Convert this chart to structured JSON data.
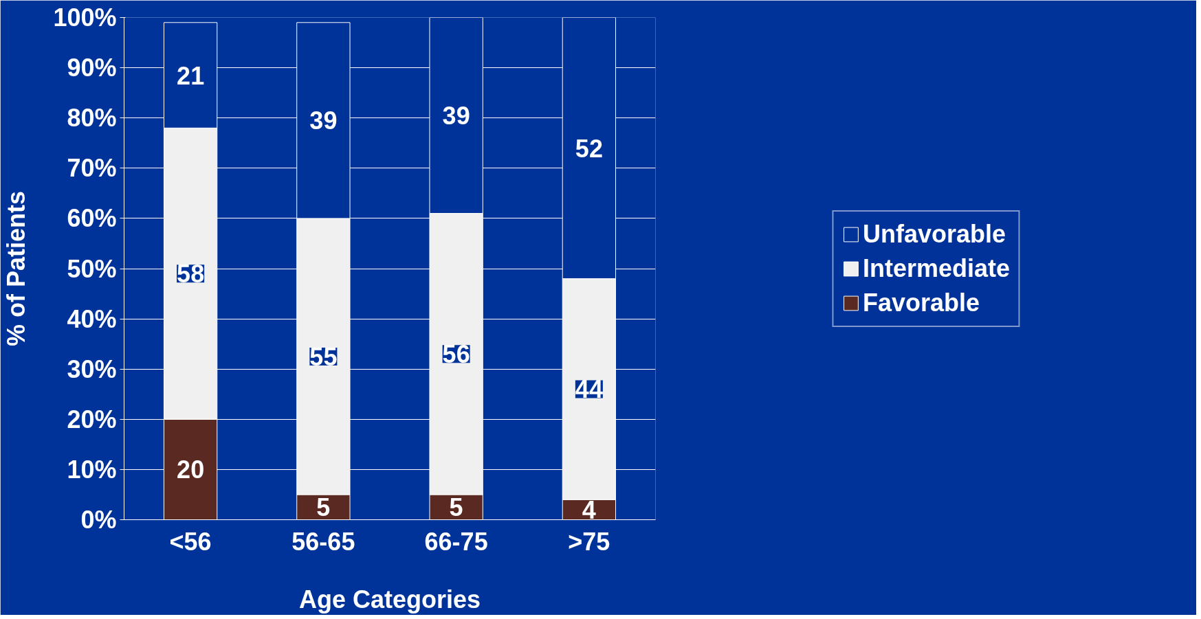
{
  "chart_data": {
    "type": "bar",
    "stacked": true,
    "xlabel": "Age Categories",
    "ylabel": "% of Patients",
    "categories": [
      "<56",
      "56-65",
      "66-75",
      ">75"
    ],
    "series": [
      {
        "name": "Favorable",
        "color": "#5a2a22",
        "values": [
          20,
          5,
          5,
          4
        ]
      },
      {
        "name": "Intermediate",
        "color": "#f0f0f0",
        "values": [
          58,
          55,
          56,
          44
        ]
      },
      {
        "name": "Unfavorable",
        "color": "#003399",
        "values": [
          21,
          39,
          39,
          52
        ]
      }
    ],
    "ylim": [
      0,
      100
    ],
    "yticks": [
      {
        "value": 0,
        "label": "0%"
      },
      {
        "value": 10,
        "label": "10%"
      },
      {
        "value": 20,
        "label": "20%"
      },
      {
        "value": 30,
        "label": "30%"
      },
      {
        "value": 40,
        "label": "40%"
      },
      {
        "value": 50,
        "label": "50%"
      },
      {
        "value": 60,
        "label": "60%"
      },
      {
        "value": 70,
        "label": "70%"
      },
      {
        "value": 80,
        "label": "80%"
      },
      {
        "value": 90,
        "label": "90%"
      },
      {
        "value": 100,
        "label": "100%"
      }
    ],
    "grid": "y",
    "legend": "right",
    "data_labels": true
  }
}
